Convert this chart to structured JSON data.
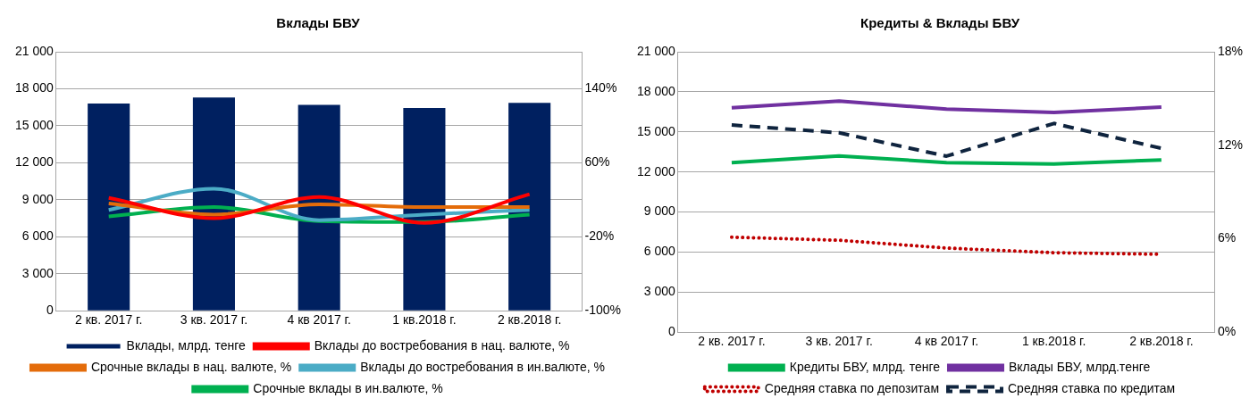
{
  "chart_data": [
    {
      "type": "bar",
      "title": "Вклады БВУ",
      "categories": [
        "2 кв. 2017 г.",
        "3 кв. 2017 г.",
        "4 кв 2017 г.",
        "1 кв.2018 г.",
        "2 кв.2018 г."
      ],
      "series": [
        {
          "name": "Вклады, млрд. тенге",
          "type": "bar",
          "color": "#002060",
          "values": [
            16800,
            17300,
            16700,
            16450,
            16850
          ]
        },
        {
          "name": "Вклады до востребования в нац. валюте, %",
          "type": "line",
          "axis": "y2",
          "color": "#ff0000",
          "values": [
            22,
            0,
            23,
            -5,
            26
          ]
        },
        {
          "name": "Срочные вклады в нац. валюте, %",
          "type": "line",
          "axis": "y2",
          "color": "#e46c0a",
          "values": [
            16,
            4,
            15,
            12,
            12
          ]
        },
        {
          "name": "Вклады до востребования в ин.валюте, %",
          "type": "line",
          "axis": "y2",
          "color": "#4bacc6",
          "values": [
            9,
            32,
            -2,
            4,
            9
          ]
        },
        {
          "name": "Срочные вклады в ин.валюте, %",
          "type": "line",
          "axis": "y2",
          "color": "#00b050",
          "values": [
            2,
            12,
            -3,
            -4,
            4
          ]
        }
      ],
      "ylim": [
        0,
        21000
      ],
      "yticks": [
        0,
        {
          "value": 3000,
          "label": "3 000"
        },
        {
          "value": 6000,
          "label": "6 000"
        },
        {
          "value": 9000,
          "label": "9 000"
        },
        {
          "value": 12000,
          "label": "12 000"
        },
        {
          "value": 15000,
          "label": "15 000"
        },
        {
          "value": 18000,
          "label": "18 000"
        },
        {
          "value": 21000,
          "label": "21 000"
        }
      ],
      "y2lim": [
        -100,
        180
      ],
      "y2ticks": [
        {
          "value": -100,
          "label": "-100%"
        },
        {
          "value": -20,
          "label": "-20%"
        },
        {
          "value": 60,
          "label": "60%"
        },
        {
          "value": 140,
          "label": "140%"
        }
      ],
      "grid": "y",
      "legend": "bottom",
      "marker": "none"
    },
    {
      "type": "line",
      "title": "Кредиты & Вклады БВУ",
      "categories": [
        "2 кв. 2017 г.",
        "3 кв. 2017 г.",
        "4 кв 2017 г.",
        "1 кв.2018 г.",
        "2 кв.2018 г."
      ],
      "series": [
        {
          "name": "Кредиты БВУ, млрд. тенге",
          "color": "#00b050",
          "line_style": "solid",
          "values": [
            12700,
            13200,
            12700,
            12600,
            12900
          ]
        },
        {
          "name": "Вклады БВУ, млрд.тенге",
          "color": "#7030a0",
          "line_style": "solid",
          "values": [
            16800,
            17300,
            16700,
            16450,
            16850
          ]
        },
        {
          "name": "Средняя ставка по депозитам",
          "axis": "y2",
          "color": "#c00000",
          "line_style": "dotted",
          "values": [
            6.1,
            5.9,
            5.4,
            5.1,
            5.0
          ]
        },
        {
          "name": "Средняя ставка по кредитам",
          "axis": "y2",
          "color": "#0f243e",
          "line_style": "dashed",
          "values": [
            13.3,
            12.8,
            11.3,
            13.4,
            11.8
          ]
        }
      ],
      "ylim": [
        0,
        21000
      ],
      "yticks": [
        0,
        {
          "value": 3000,
          "label": "3 000"
        },
        {
          "value": 6000,
          "label": "6 000"
        },
        {
          "value": 9000,
          "label": "9 000"
        },
        {
          "value": 12000,
          "label": "12 000"
        },
        {
          "value": 15000,
          "label": "15 000"
        },
        {
          "value": 18000,
          "label": "18 000"
        },
        {
          "value": 21000,
          "label": "21 000"
        }
      ],
      "y2lim": [
        0,
        18
      ],
      "y2ticks": [
        {
          "value": 0,
          "label": "0%"
        },
        {
          "value": 6,
          "label": "6%"
        },
        {
          "value": 12,
          "label": "12%"
        },
        {
          "value": 18,
          "label": "18%"
        }
      ],
      "grid": "y",
      "legend": "bottom",
      "marker": "none"
    }
  ]
}
